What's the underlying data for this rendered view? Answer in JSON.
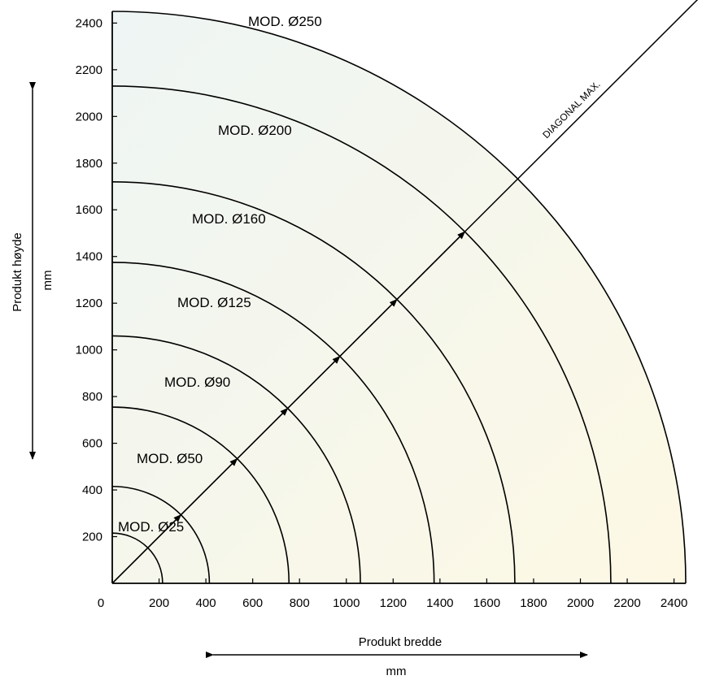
{
  "colors": {
    "fill_light": "#eef5f4",
    "fill_warm": "#fdf8e4",
    "line": "#000000",
    "background": "#ffffff"
  },
  "chart_data": {
    "type": "line",
    "description_chart_kind": "quarter-circle size chart",
    "xlabel": "Produkt bredde",
    "xunit": "mm",
    "ylabel": "Produkt høyde",
    "yunit": "mm",
    "xlim": [
      0,
      2450
    ],
    "ylim": [
      0,
      2450
    ],
    "x_ticks": [
      0,
      200,
      400,
      600,
      800,
      1000,
      1200,
      1400,
      1600,
      1800,
      2000,
      2200,
      2400
    ],
    "y_ticks": [
      200,
      400,
      600,
      800,
      1000,
      1200,
      1400,
      1600,
      1800,
      2000,
      2200,
      2400
    ],
    "series": [
      {
        "name": "MOD. Ø25",
        "radius": 215
      },
      {
        "name": "MOD. Ø50",
        "radius": 415
      },
      {
        "name": "MOD. Ø90",
        "radius": 755
      },
      {
        "name": "MOD. Ø125",
        "radius": 1060
      },
      {
        "name": "MOD. Ø160",
        "radius": 1375
      },
      {
        "name": "MOD. Ø200",
        "radius": 1720
      },
      {
        "name": "MOD. Ø250",
        "radius": 2130
      }
    ],
    "diagonal_label": "DIAGONAL MAX.",
    "grid": false,
    "legend": "none"
  }
}
